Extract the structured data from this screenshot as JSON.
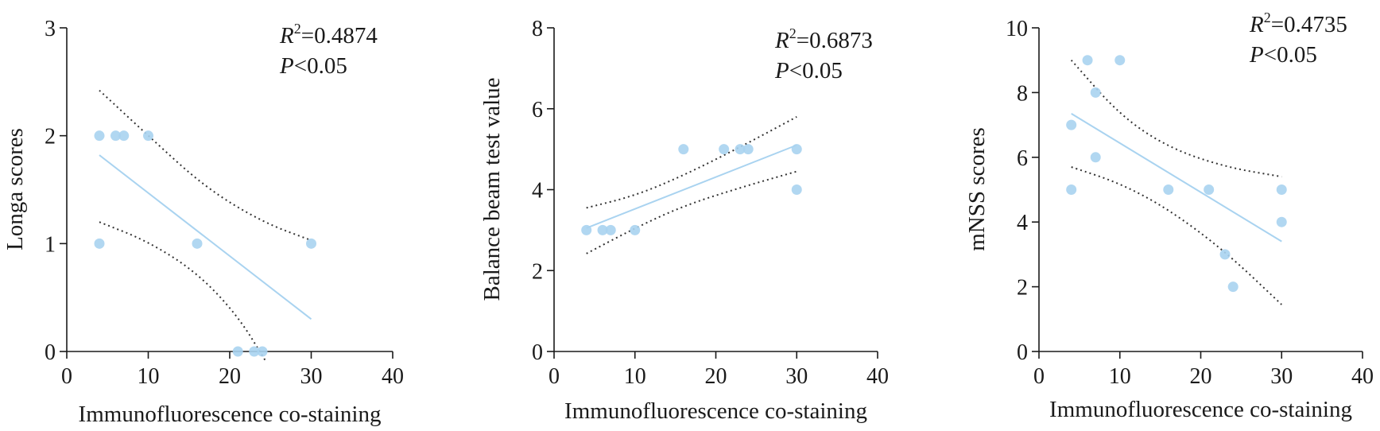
{
  "chart_data": [
    {
      "type": "scatter",
      "xlabel": "Immunofluorescence co-staining",
      "ylabel": "Longa scores",
      "xlim": [
        0,
        40
      ],
      "ylim": [
        0,
        3
      ],
      "xticks": [
        0,
        10,
        20,
        30,
        40
      ],
      "yticks": [
        0,
        1,
        2,
        3
      ],
      "xtick_labels": [
        "0",
        "10",
        "20",
        "30",
        "40"
      ],
      "ytick_labels": [
        "0",
        "1",
        "2",
        "3"
      ],
      "r2_label": "R",
      "r2_sup": "2",
      "r2_value": "=0.4874",
      "p_label": "P",
      "p_value": "<0.05",
      "points": [
        {
          "x": 4,
          "y": 2
        },
        {
          "x": 6,
          "y": 2
        },
        {
          "x": 7,
          "y": 2
        },
        {
          "x": 10,
          "y": 2
        },
        {
          "x": 4,
          "y": 1
        },
        {
          "x": 16,
          "y": 1
        },
        {
          "x": 30,
          "y": 1
        },
        {
          "x": 21,
          "y": 0
        },
        {
          "x": 23,
          "y": 0
        },
        {
          "x": 24,
          "y": 0
        }
      ],
      "fit_line": [
        {
          "x": 4,
          "y": 1.82
        },
        {
          "x": 30,
          "y": 0.3
        }
      ],
      "ci_upper": [
        {
          "x": 4,
          "y": 2.42
        },
        {
          "x": 10,
          "y": 2.0
        },
        {
          "x": 17,
          "y": 1.52
        },
        {
          "x": 24,
          "y": 1.2
        },
        {
          "x": 30,
          "y": 1.03
        }
      ],
      "ci_lower": [
        {
          "x": 4,
          "y": 1.2
        },
        {
          "x": 10,
          "y": 1.02
        },
        {
          "x": 16,
          "y": 0.73
        },
        {
          "x": 21,
          "y": 0.33
        },
        {
          "x": 24.5,
          "y": -0.1
        }
      ],
      "point_color": "#a9d3f0",
      "fit_color": "#a9d3f0",
      "grid": false
    },
    {
      "type": "scatter",
      "xlabel": "Immunofluorescence co-staining",
      "ylabel": "Balance beam test value",
      "xlim": [
        0,
        40
      ],
      "ylim": [
        0,
        8
      ],
      "xticks": [
        0,
        10,
        20,
        30,
        40
      ],
      "yticks": [
        0,
        2,
        4,
        6,
        8
      ],
      "xtick_labels": [
        "0",
        "10",
        "20",
        "30",
        "40"
      ],
      "ytick_labels": [
        "0",
        "2",
        "4",
        "6",
        "8"
      ],
      "r2_label": "R",
      "r2_sup": "2",
      "r2_value": "=0.6873",
      "p_label": "P",
      "p_value": "<0.05",
      "points": [
        {
          "x": 4,
          "y": 3
        },
        {
          "x": 6,
          "y": 3
        },
        {
          "x": 7,
          "y": 3
        },
        {
          "x": 10,
          "y": 3
        },
        {
          "x": 16,
          "y": 5
        },
        {
          "x": 21,
          "y": 5
        },
        {
          "x": 23,
          "y": 5
        },
        {
          "x": 24,
          "y": 5
        },
        {
          "x": 30,
          "y": 5
        },
        {
          "x": 30,
          "y": 4
        }
      ],
      "fit_line": [
        {
          "x": 4,
          "y": 3.05
        },
        {
          "x": 30,
          "y": 5.1
        }
      ],
      "ci_upper": [
        {
          "x": 4,
          "y": 3.55
        },
        {
          "x": 10,
          "y": 3.85
        },
        {
          "x": 16,
          "y": 4.35
        },
        {
          "x": 23,
          "y": 5.05
        },
        {
          "x": 30,
          "y": 5.8
        }
      ],
      "ci_lower": [
        {
          "x": 4,
          "y": 2.42
        },
        {
          "x": 10,
          "y": 3.05
        },
        {
          "x": 16,
          "y": 3.6
        },
        {
          "x": 23,
          "y": 4.05
        },
        {
          "x": 30,
          "y": 4.45
        }
      ],
      "point_color": "#a9d3f0",
      "fit_color": "#a9d3f0",
      "grid": false
    },
    {
      "type": "scatter",
      "xlabel": "Immunofluorescence co-staining",
      "ylabel": "mNSS scores",
      "xlim": [
        0,
        40
      ],
      "ylim": [
        0,
        10
      ],
      "xticks": [
        0,
        10,
        20,
        30,
        40
      ],
      "yticks": [
        0,
        2,
        4,
        6,
        8,
        10
      ],
      "xtick_labels": [
        "0",
        "10",
        "20",
        "30",
        "40"
      ],
      "ytick_labels": [
        "0",
        "2",
        "4",
        "6",
        "8",
        "10"
      ],
      "r2_label": "R",
      "r2_sup": "2",
      "r2_value": "=0.4735",
      "p_label": "P",
      "p_value": "<0.05",
      "points": [
        {
          "x": 6,
          "y": 9
        },
        {
          "x": 10,
          "y": 9
        },
        {
          "x": 7,
          "y": 8
        },
        {
          "x": 4,
          "y": 7
        },
        {
          "x": 7,
          "y": 6
        },
        {
          "x": 4,
          "y": 5
        },
        {
          "x": 16,
          "y": 5
        },
        {
          "x": 21,
          "y": 5
        },
        {
          "x": 30,
          "y": 5
        },
        {
          "x": 30,
          "y": 4
        },
        {
          "x": 23,
          "y": 3
        },
        {
          "x": 24,
          "y": 2
        }
      ],
      "fit_line": [
        {
          "x": 4,
          "y": 7.35
        },
        {
          "x": 30,
          "y": 3.4
        }
      ],
      "ci_upper": [
        {
          "x": 4,
          "y": 9.0
        },
        {
          "x": 10,
          "y": 7.3
        },
        {
          "x": 16,
          "y": 6.3
        },
        {
          "x": 23,
          "y": 5.7
        },
        {
          "x": 30,
          "y": 5.4
        }
      ],
      "ci_lower": [
        {
          "x": 4,
          "y": 5.7
        },
        {
          "x": 10,
          "y": 5.2
        },
        {
          "x": 16,
          "y": 4.4
        },
        {
          "x": 23,
          "y": 3.1
        },
        {
          "x": 30,
          "y": 1.45
        }
      ],
      "point_color": "#a9d3f0",
      "fit_color": "#a9d3f0",
      "grid": false
    }
  ]
}
